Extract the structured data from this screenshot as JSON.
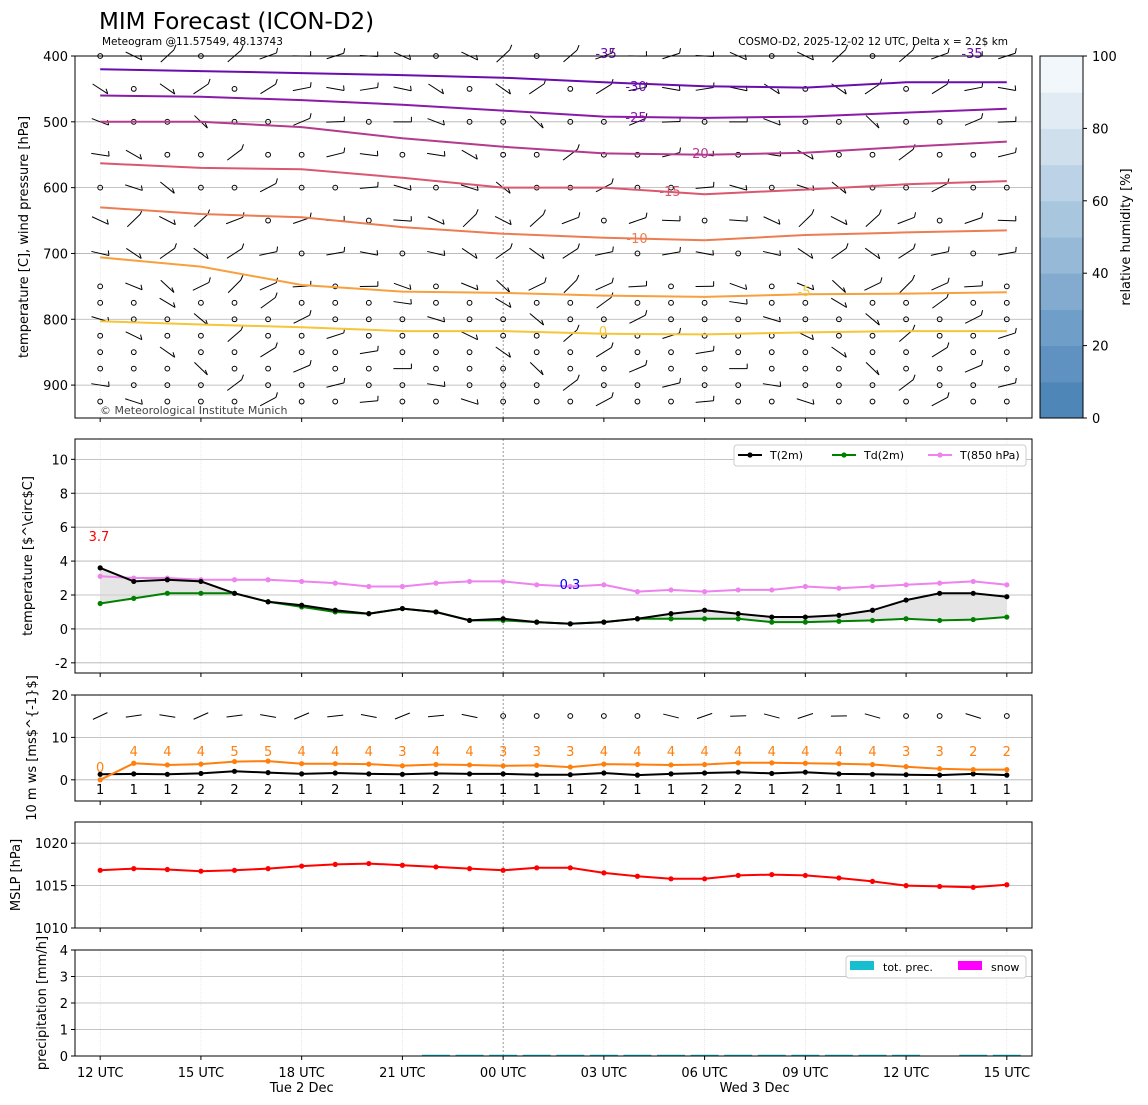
{
  "header": {
    "title": "MIM Forecast (ICON-D2)",
    "subtitle_left": "Meteogram @11.57549, 48.13743",
    "subtitle_right": "COSMO-D2, 2025-12-02 12 UTC, Delta x = 2.2$ km"
  },
  "time_axis": {
    "tick_labels": [
      "12 UTC",
      "15 UTC",
      "18 UTC",
      "21 UTC",
      "00 UTC",
      "03 UTC",
      "06 UTC",
      "09 UTC",
      "12 UTC",
      "15 UTC"
    ],
    "day_labels": [
      "Tue 2 Dec",
      "Wed 3 Dec"
    ]
  },
  "chart_data": [
    {
      "type": "contour",
      "name": "upper-air",
      "ylabel": "temperature [C], wind pressure [hPa]",
      "ylim": [
        950,
        400
      ],
      "yticks": [
        400,
        500,
        600,
        700,
        800,
        900
      ],
      "copyright": "© Meteorological Institute Munich",
      "colorbar": {
        "label": "relative humidity [%]",
        "ticks": [
          0,
          20,
          40,
          60,
          80,
          100
        ],
        "range": [
          0,
          100
        ]
      },
      "hours": [
        0,
        3,
        6,
        9,
        12,
        15,
        18,
        21,
        24,
        27
      ],
      "isotherms": [
        {
          "label": "-35",
          "color": "#6a0dad",
          "values": [
            420,
            423,
            426,
            429,
            433,
            440,
            446,
            448,
            440,
            440
          ]
        },
        {
          "label": "-30",
          "color": "#8a1aa8",
          "values": [
            460,
            462,
            467,
            474,
            483,
            492,
            494,
            492,
            486,
            480
          ]
        },
        {
          "label": "-25",
          "color": "#b43a8e",
          "values": [
            500,
            500,
            508,
            525,
            538,
            548,
            550,
            547,
            538,
            530
          ]
        },
        {
          "label": "-20",
          "color": "#d9576f",
          "values": [
            563,
            570,
            572,
            585,
            600,
            600,
            610,
            603,
            595,
            590
          ]
        },
        {
          "label": "-15",
          "color": "#ec7d52",
          "values": [
            630,
            640,
            645,
            660,
            670,
            676,
            680,
            672,
            668,
            665
          ]
        },
        {
          "label": "-10",
          "color": "#f7a03c",
          "values": [
            706,
            720,
            748,
            758,
            760,
            764,
            766,
            762,
            761,
            759
          ]
        },
        {
          "label": "-5",
          "color": "#f6c53a",
          "values": [
            803,
            808,
            812,
            818,
            818,
            822,
            823,
            820,
            818,
            818
          ]
        }
      ],
      "contour_labels": [
        "-35",
        "-30",
        "-25",
        "-20",
        "-15",
        "-10",
        "-5",
        "0",
        "-35"
      ]
    },
    {
      "type": "line",
      "name": "surface-temperature",
      "ylabel": "temperature [$^\\circ$C]",
      "ylim": [
        -2.6,
        11.2
      ],
      "yticks": [
        -2,
        0,
        2,
        4,
        6,
        8,
        10
      ],
      "hours": [
        0,
        1,
        2,
        3,
        4,
        5,
        6,
        7,
        8,
        9,
        10,
        11,
        12,
        13,
        14,
        15,
        16,
        17,
        18,
        19,
        20,
        21,
        22,
        23,
        24,
        25,
        26,
        27
      ],
      "max_label": "3.7",
      "min_label": "0.3",
      "legend": [
        "T(2m)",
        "Td(2m)",
        "T(850 hPa)"
      ],
      "series": [
        {
          "name": "T(2m)",
          "color": "#000000",
          "values": [
            3.6,
            2.8,
            2.9,
            2.8,
            2.1,
            1.6,
            1.4,
            1.1,
            0.9,
            1.2,
            1.0,
            0.5,
            0.6,
            0.4,
            0.3,
            0.4,
            0.6,
            0.9,
            1.1,
            0.9,
            0.7,
            0.7,
            0.8,
            1.1,
            1.7,
            2.1,
            2.1,
            1.9
          ]
        },
        {
          "name": "Td(2m)",
          "color": "#008000",
          "values": [
            1.5,
            1.8,
            2.1,
            2.1,
            2.1,
            1.6,
            1.3,
            1.0,
            0.9,
            1.2,
            1.0,
            0.5,
            0.5,
            0.4,
            0.3,
            0.4,
            0.6,
            0.6,
            0.6,
            0.6,
            0.4,
            0.4,
            0.45,
            0.5,
            0.6,
            0.5,
            0.55,
            0.7
          ]
        },
        {
          "name": "T(850 hPa)",
          "color": "#ee82ee",
          "values": [
            3.1,
            3.0,
            3.0,
            2.9,
            2.9,
            2.9,
            2.8,
            2.7,
            2.5,
            2.5,
            2.7,
            2.8,
            2.8,
            2.6,
            2.5,
            2.6,
            2.2,
            2.3,
            2.2,
            2.3,
            2.3,
            2.5,
            2.4,
            2.5,
            2.6,
            2.7,
            2.8,
            2.6
          ]
        }
      ]
    },
    {
      "type": "line",
      "name": "wind",
      "ylabel": "10 m ws [ms$^{-1}$]",
      "ylim": [
        -5,
        20
      ],
      "yticks": [
        0,
        10,
        20
      ],
      "hours": [
        0,
        1,
        2,
        3,
        4,
        5,
        6,
        7,
        8,
        9,
        10,
        11,
        12,
        13,
        14,
        15,
        16,
        17,
        18,
        19,
        20,
        21,
        22,
        23,
        24,
        25,
        26,
        27
      ],
      "series": [
        {
          "name": "wind speed",
          "color": "#000000",
          "values": [
            1.3,
            1.4,
            1.3,
            1.5,
            2.0,
            1.7,
            1.4,
            1.6,
            1.4,
            1.3,
            1.5,
            1.4,
            1.4,
            1.2,
            1.2,
            1.6,
            1.1,
            1.4,
            1.6,
            1.8,
            1.5,
            1.8,
            1.4,
            1.3,
            1.2,
            1.1,
            1.4,
            1.1
          ]
        },
        {
          "name": "gusts",
          "color": "#ff7f0e",
          "values": [
            0.0,
            3.9,
            3.5,
            3.7,
            4.3,
            4.4,
            3.8,
            3.8,
            3.7,
            3.3,
            3.6,
            3.5,
            3.3,
            3.4,
            3.0,
            3.7,
            3.6,
            3.5,
            3.6,
            4.0,
            4.0,
            3.9,
            3.8,
            3.6,
            3.1,
            2.6,
            2.4,
            2.4
          ]
        }
      ],
      "speed_labels": [
        "1",
        "1",
        "1",
        "2",
        "2",
        "2",
        "1",
        "2",
        "1",
        "1",
        "2",
        "1",
        "1",
        "1",
        "1",
        "2",
        "1",
        "1",
        "2",
        "2",
        "1",
        "2",
        "1",
        "1",
        "1",
        "1",
        "1",
        "1"
      ],
      "gust_labels": [
        "0",
        "4",
        "4",
        "4",
        "5",
        "5",
        "4",
        "4",
        "4",
        "3",
        "4",
        "4",
        "3",
        "3",
        "3",
        "4",
        "4",
        "4",
        "4",
        "4",
        "4",
        "4",
        "4",
        "4",
        "3",
        "3",
        "2",
        "2"
      ]
    },
    {
      "type": "line",
      "name": "pressure",
      "ylabel": "MSLP [hPa]",
      "ylim": [
        1010,
        1022.5
      ],
      "yticks": [
        1010,
        1015,
        1020
      ],
      "hours": [
        0,
        1,
        2,
        3,
        4,
        5,
        6,
        7,
        8,
        9,
        10,
        11,
        12,
        13,
        14,
        15,
        16,
        17,
        18,
        19,
        20,
        21,
        22,
        23,
        24,
        25,
        26,
        27
      ],
      "series": [
        {
          "name": "MSLP",
          "color": "#ff0000",
          "values": [
            1016.8,
            1017.0,
            1016.9,
            1016.7,
            1016.8,
            1017.0,
            1017.3,
            1017.5,
            1017.6,
            1017.4,
            1017.2,
            1017.0,
            1016.8,
            1017.1,
            1017.1,
            1016.5,
            1016.1,
            1015.8,
            1015.8,
            1016.2,
            1016.3,
            1016.2,
            1015.9,
            1015.5,
            1015.0,
            1014.9,
            1014.8,
            1015.1
          ]
        }
      ]
    },
    {
      "type": "bar",
      "name": "precipitation",
      "ylabel": "precipitation [mm/h]",
      "ylim": [
        0,
        4
      ],
      "yticks": [
        0,
        1,
        2,
        3,
        4
      ],
      "legend": [
        "tot. prec.",
        "snow"
      ],
      "series": [
        {
          "name": "tot. prec.",
          "color": "#17becf",
          "values": [
            0,
            0,
            0,
            0,
            0,
            0,
            0,
            0,
            0,
            0,
            0.01,
            0.01,
            0.01,
            0.01,
            0.01,
            0.01,
            0.01,
            0.01,
            0.01,
            0.01,
            0.01,
            0.01,
            0.01,
            0.01,
            0.01,
            0,
            0.01,
            0.01
          ]
        },
        {
          "name": "snow",
          "color": "#ff00ff",
          "values": [
            0,
            0,
            0,
            0,
            0,
            0,
            0,
            0,
            0,
            0,
            0,
            0,
            0,
            0,
            0,
            0,
            0,
            0,
            0,
            0,
            0,
            0,
            0,
            0,
            0,
            0,
            0,
            0
          ]
        }
      ]
    }
  ]
}
